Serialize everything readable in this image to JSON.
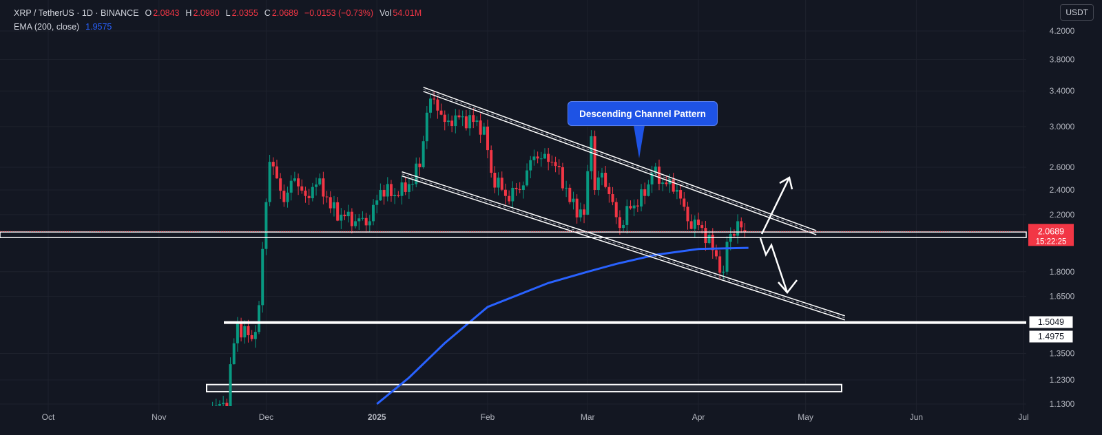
{
  "header": {
    "symbol": "XRP / TetherUS · 1D · BINANCE",
    "o_label": "O",
    "o": "2.0843",
    "h_label": "H",
    "h": "2.0980",
    "l_label": "L",
    "l": "2.0355",
    "c_label": "C",
    "c": "2.0689",
    "change": "−0.0153 (−0.73%)",
    "vol_label": "Vol",
    "vol": "54.01M",
    "ema_label": "EMA (200, close)",
    "ema": "1.9575"
  },
  "currency": "USDT",
  "annotation": "Descending Channel Pattern",
  "colors": {
    "up": "#089981",
    "down": "#f23645",
    "ema": "#2962ff",
    "callout": "#1e53e5",
    "bg": "#131722"
  },
  "chart_data": {
    "type": "candlestick",
    "title": "XRP / TetherUS · 1D · BINANCE",
    "y_scale": "log",
    "ylim": [
      1.1,
      4.3
    ],
    "y_ticks": [
      "4.2000",
      "3.8000",
      "3.4000",
      "3.0000",
      "2.6000",
      "2.4000",
      "2.2000",
      "1.8000",
      "1.6500",
      "1.3500",
      "1.2300",
      "1.1300"
    ],
    "x_ticks": [
      {
        "label": "Oct",
        "date": "2024-10-01"
      },
      {
        "label": "Nov",
        "date": "2024-11-01"
      },
      {
        "label": "Dec",
        "date": "2024-12-01"
      },
      {
        "label": "2025",
        "date": "2025-01-01"
      },
      {
        "label": "Feb",
        "date": "2025-02-01"
      },
      {
        "label": "Mar",
        "date": "2025-03-01"
      },
      {
        "label": "Apr",
        "date": "2025-04-01"
      },
      {
        "label": "May",
        "date": "2025-05-01"
      },
      {
        "label": "Jun",
        "date": "2025-06-01"
      },
      {
        "label": "Jul",
        "date": "2025-07-01"
      }
    ],
    "approx_close_anchors": [
      [
        "2024-11-15",
        1.0
      ],
      [
        "2024-11-16",
        1.12
      ],
      [
        "2024-11-20",
        1.12
      ],
      [
        "2024-11-21",
        1.3
      ],
      [
        "2024-11-23",
        1.5
      ],
      [
        "2024-11-27",
        1.42
      ],
      [
        "2024-11-29",
        1.6
      ],
      [
        "2024-11-30",
        1.95
      ],
      [
        "2024-12-01",
        2.3
      ],
      [
        "2024-12-02",
        2.65
      ],
      [
        "2024-12-04",
        2.5
      ],
      [
        "2024-12-06",
        2.3
      ],
      [
        "2024-12-09",
        2.5
      ],
      [
        "2024-12-12",
        2.35
      ],
      [
        "2024-12-16",
        2.5
      ],
      [
        "2024-12-19",
        2.25
      ],
      [
        "2024-12-22",
        2.2
      ],
      [
        "2024-12-26",
        2.15
      ],
      [
        "2024-12-30",
        2.15
      ],
      [
        "2025-01-02",
        2.4
      ],
      [
        "2025-01-07",
        2.35
      ],
      [
        "2025-01-10",
        2.45
      ],
      [
        "2025-01-13",
        2.6
      ],
      [
        "2025-01-15",
        3.15
      ],
      [
        "2025-01-17",
        3.3
      ],
      [
        "2025-01-20",
        3.05
      ],
      [
        "2025-01-24",
        3.1
      ],
      [
        "2025-01-28",
        3.05
      ],
      [
        "2025-01-31",
        3.0
      ],
      [
        "2025-02-02",
        2.55
      ],
      [
        "2025-02-06",
        2.35
      ],
      [
        "2025-02-10",
        2.4
      ],
      [
        "2025-02-14",
        2.7
      ],
      [
        "2025-02-18",
        2.65
      ],
      [
        "2025-02-21",
        2.6
      ],
      [
        "2025-02-24",
        2.3
      ],
      [
        "2025-02-28",
        2.2
      ],
      [
        "2025-03-02",
        2.9
      ],
      [
        "2025-03-03",
        2.4
      ],
      [
        "2025-03-05",
        2.55
      ],
      [
        "2025-03-08",
        2.3
      ],
      [
        "2025-03-10",
        2.1
      ],
      [
        "2025-03-13",
        2.25
      ],
      [
        "2025-03-17",
        2.35
      ],
      [
        "2025-03-19",
        2.55
      ],
      [
        "2025-03-23",
        2.45
      ],
      [
        "2025-03-26",
        2.4
      ],
      [
        "2025-03-29",
        2.15
      ],
      [
        "2025-04-02",
        2.1
      ],
      [
        "2025-04-06",
        1.9
      ],
      [
        "2025-04-08",
        1.8
      ],
      [
        "2025-04-09",
        2.0
      ],
      [
        "2025-04-12",
        2.15
      ],
      [
        "2025-04-14",
        2.0689
      ]
    ],
    "ema_200": [
      [
        "2025-01-01",
        1.13
      ],
      [
        "2025-01-10",
        1.24
      ],
      [
        "2025-01-20",
        1.4
      ],
      [
        "2025-02-01",
        1.59
      ],
      [
        "2025-02-18",
        1.73
      ],
      [
        "2025-03-01",
        1.8
      ],
      [
        "2025-03-09",
        1.85
      ],
      [
        "2025-03-20",
        1.91
      ],
      [
        "2025-04-01",
        1.95
      ],
      [
        "2025-04-15",
        1.9575
      ]
    ],
    "channel_upper": [
      [
        "2025-01-14",
        3.42
      ],
      [
        "2025-05-04",
        2.065
      ]
    ],
    "channel_lower": [
      [
        "2025-01-08",
        2.54
      ],
      [
        "2025-05-12",
        1.53
      ]
    ],
    "support_zone": [
      2.03,
      2.07
    ],
    "support_line": 1.5049,
    "support_box": [
      1.18,
      1.21
    ],
    "last_price": "2.0689",
    "countdown": "15:22:25",
    "level_labels": [
      "1.5049",
      "1.4975"
    ]
  }
}
